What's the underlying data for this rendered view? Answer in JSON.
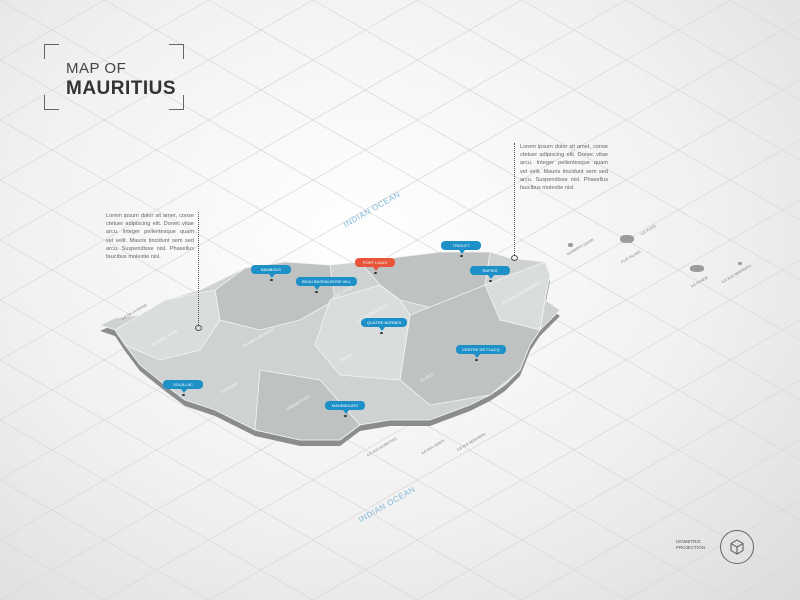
{
  "title": {
    "line1": "MAP OF",
    "line2": "MAURITIUS"
  },
  "oceans": [
    "INDIAN OCEAN",
    "INDIAN OCEAN"
  ],
  "callouts": [
    {
      "text": "Lorem ipsum dolor sit amet, conse ctetuer adipiscing elit. Donec vitae arcu. Integer pellentesque quam vel velit. Mauris tincidunt sem sed arcu. Suspendisse nisl. Phasellus faucibus molestie nisl."
    },
    {
      "text": "Lorem ipsum dolor sit amet, conse ctetuer adipiscing elit. Donec vitae arcu. Integer pellentesque quam vel velit. Mauris tincidunt sem sed arcu. Suspendisse nisl. Phasellus faucibus molestie nisl."
    }
  ],
  "cities": [
    {
      "name": "BAMBOUS",
      "capital": false
    },
    {
      "name": "BEAU BASSIN-ROSE HILL",
      "capital": false
    },
    {
      "name": "PORT LOUIS",
      "capital": true
    },
    {
      "name": "TRIOLET",
      "capital": false
    },
    {
      "name": "RAPIDS",
      "capital": false
    },
    {
      "name": "QUATRE BORNES",
      "capital": false
    },
    {
      "name": "CENTRE DE FLACQ",
      "capital": false
    },
    {
      "name": "SOUILLAC",
      "capital": false
    },
    {
      "name": "MAHEBOURG",
      "capital": false
    }
  ],
  "districts": [
    "RIVIERE NOIRE",
    "PLAINES WILHEMS",
    "PORT LOUIS",
    "PAMPLEMOUSSES",
    "RIVIERE DU REMPART",
    "MOKA",
    "FLACQ",
    "GRAND PORT",
    "SAVANNE"
  ],
  "islands": [
    "ILE AUX BENITIERS",
    "ILE AUX CERFS",
    "ILE AUX AIGRETTES",
    "ILE DE LA PASSE",
    "GUNNER'S QUOIN",
    "FLAT ISLAND",
    "ILE PLATE",
    "ILE RONDE",
    "ILE AUX SERPENTS"
  ],
  "footer": {
    "projection": "ISOMETRIC PROJECTION"
  },
  "colors": {
    "land": "#c9cccd",
    "land_light": "#d8dbdc",
    "shadow": "#8a8c8e",
    "pin": "#1e90c8",
    "capital_pin": "#e8553a",
    "ocean_text": "#7fb6d6"
  }
}
